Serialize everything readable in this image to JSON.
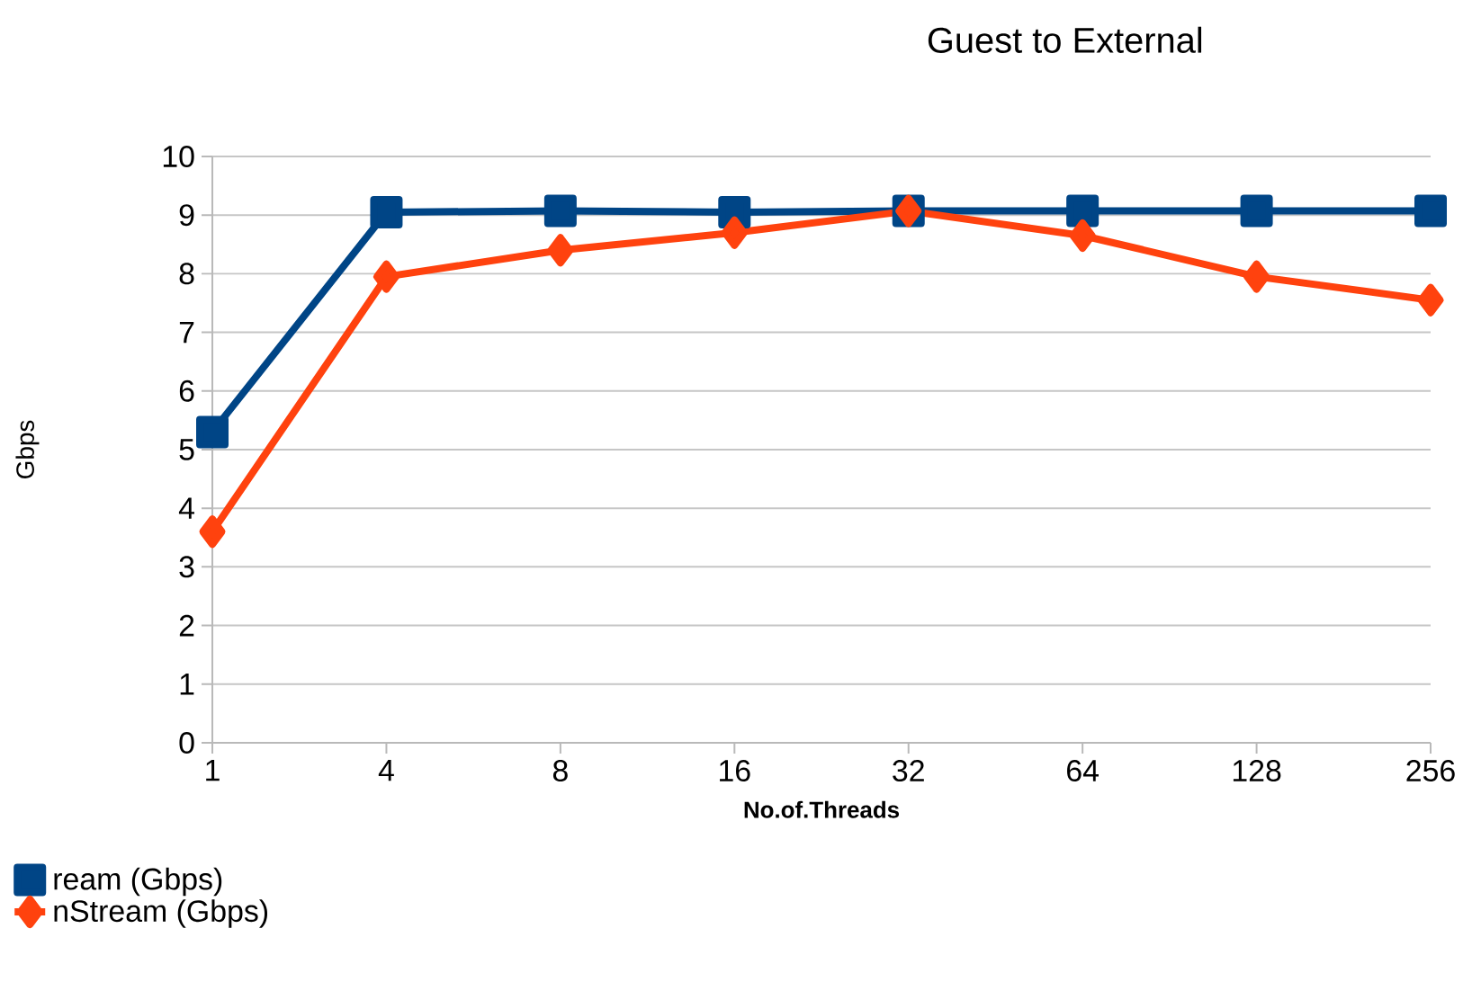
{
  "chart_data": {
    "type": "line",
    "title": "Guest to External",
    "xlabel": "No.of.Threads",
    "ylabel": "Gbps",
    "categories": [
      "1",
      "4",
      "8",
      "16",
      "32",
      "64",
      "128",
      "256"
    ],
    "series": [
      {
        "name": "ream (Gbps)",
        "color": "#004586",
        "marker": "square",
        "values": [
          5.3,
          9.05,
          9.07,
          9.05,
          9.07,
          9.07,
          9.07,
          9.07
        ]
      },
      {
        "name": "nStream (Gbps)",
        "color": "#ff420e",
        "marker": "diamond",
        "values": [
          3.6,
          7.95,
          8.4,
          8.7,
          9.07,
          8.65,
          7.95,
          7.55
        ]
      }
    ],
    "ylim": [
      0,
      10
    ],
    "yticks": [
      0,
      1,
      2,
      3,
      4,
      5,
      6,
      7,
      8,
      9,
      10
    ],
    "grid": "y",
    "legend": "bottom left",
    "line_style": "solid"
  }
}
